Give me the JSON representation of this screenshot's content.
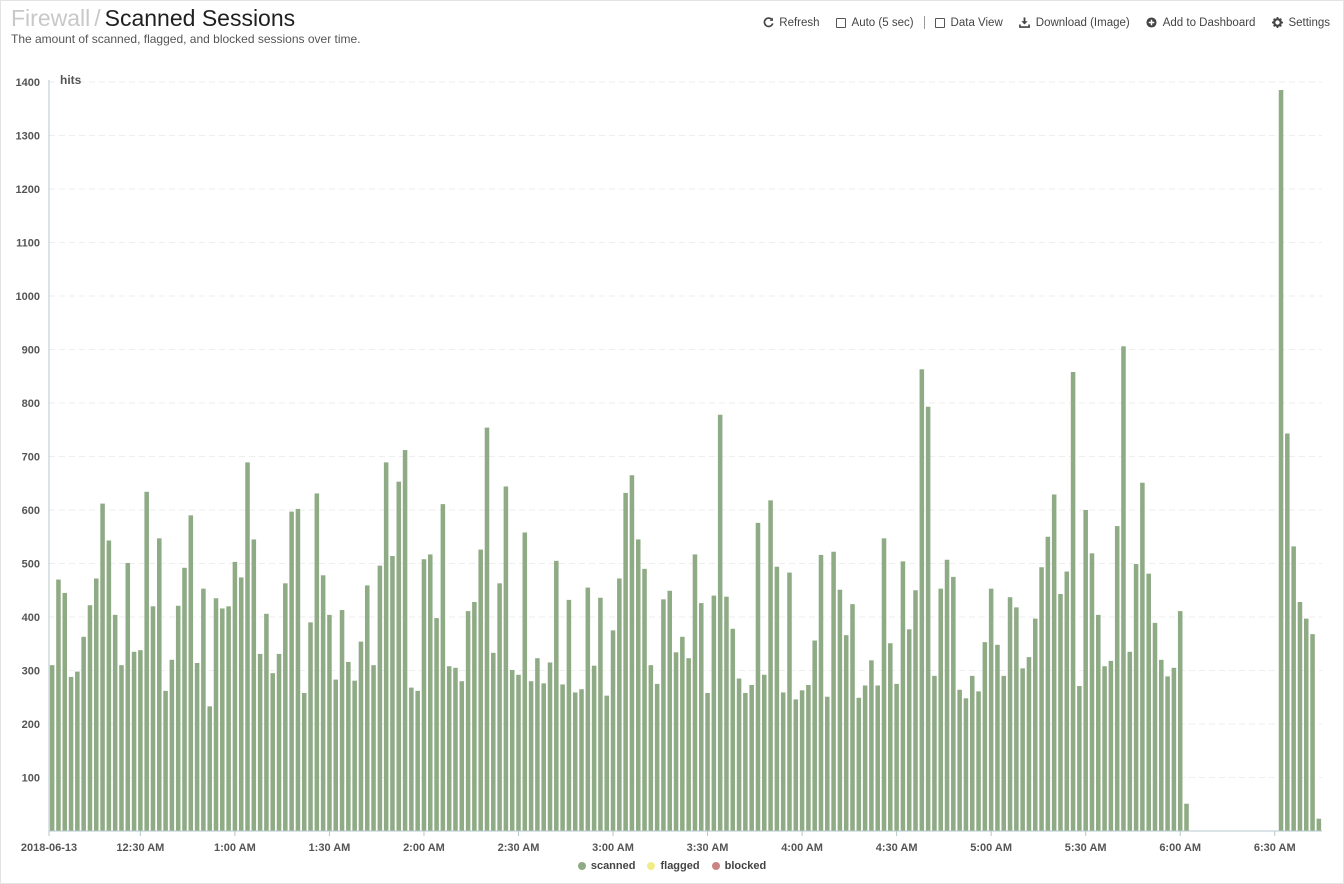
{
  "header": {
    "breadcrumb": "Firewall",
    "separator": "/",
    "title": "Scanned Sessions",
    "subtitle": "The amount of scanned, flagged, and blocked sessions over time."
  },
  "toolbar": {
    "refresh_label": "Refresh",
    "auto_label": "Auto (5 sec)",
    "data_view_label": "Data View",
    "download_label": "Download (Image)",
    "add_dashboard_label": "Add to Dashboard",
    "settings_label": "Settings"
  },
  "colors": {
    "scanned": "#8fab85",
    "flagged": "#f1ec8a",
    "blocked": "#c98484",
    "axis": "#b5c7cc",
    "grid": "#eeeeee"
  },
  "chart_data": {
    "type": "bar",
    "ylabel": "hits",
    "ylim": [
      0,
      1400
    ],
    "yticks": [
      100,
      200,
      300,
      400,
      500,
      600,
      700,
      800,
      900,
      1000,
      1100,
      1200,
      1300,
      1400
    ],
    "x_tick_labels": [
      "2018-06-13",
      "12:30 AM",
      "1:00 AM",
      "1:30 AM",
      "2:00 AM",
      "2:30 AM",
      "3:00 AM",
      "3:30 AM",
      "4:00 AM",
      "4:30 AM",
      "5:00 AM",
      "5:30 AM",
      "6:00 AM",
      "6:30 AM"
    ],
    "legend_position": "bottom-center",
    "grid": true,
    "series": [
      {
        "name": "scanned",
        "interval_minutes": 2,
        "values": [
          310,
          470,
          445,
          288,
          298,
          363,
          422,
          472,
          612,
          543,
          404,
          310,
          501,
          335,
          338,
          634,
          420,
          547,
          262,
          320,
          421,
          492,
          590,
          314,
          453,
          233,
          435,
          416,
          420,
          503,
          474,
          689,
          545,
          331,
          406,
          295,
          331,
          463,
          597,
          602,
          258,
          390,
          631,
          478,
          404,
          283,
          413,
          316,
          281,
          354,
          459,
          310,
          496,
          689,
          514,
          653,
          712,
          268,
          262,
          508,
          517,
          398,
          611,
          308,
          305,
          280,
          411,
          428,
          526,
          754,
          333,
          463,
          644,
          301,
          292,
          558,
          280,
          323,
          276,
          315,
          505,
          274,
          432,
          259,
          265,
          455,
          309,
          436,
          253,
          375,
          472,
          632,
          665,
          545,
          490,
          310,
          275,
          433,
          449,
          334,
          363,
          323,
          517,
          426,
          258,
          440,
          778,
          438,
          378,
          285,
          258,
          273,
          576,
          292,
          618,
          494,
          259,
          483,
          246,
          263,
          273,
          356,
          516,
          251,
          522,
          451,
          366,
          424,
          249,
          272,
          319,
          272,
          547,
          351,
          275,
          504,
          377,
          450,
          863,
          793,
          290,
          453,
          507,
          475,
          264,
          248,
          290,
          261,
          353,
          453,
          348,
          290,
          437,
          418,
          304,
          325,
          397,
          493,
          550,
          629,
          443,
          485,
          858,
          271,
          600,
          519,
          404,
          308,
          318,
          570,
          906,
          335,
          499,
          651,
          481,
          389,
          320,
          289,
          305,
          411,
          51,
          0,
          0,
          0,
          0,
          0,
          0,
          0,
          0,
          0,
          0,
          0,
          0,
          0,
          0,
          1385,
          743,
          532,
          428,
          397,
          368,
          23
        ]
      },
      {
        "name": "flagged",
        "values": []
      },
      {
        "name": "blocked",
        "values": []
      }
    ]
  }
}
